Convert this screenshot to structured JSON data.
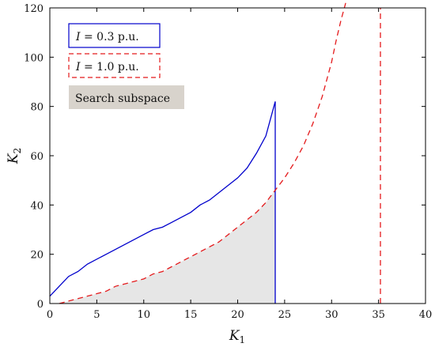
{
  "chart_data": {
    "type": "line",
    "title": "",
    "xlabel": "K",
    "xlabel_sub": "1",
    "ylabel": "K",
    "ylabel_sub": "2",
    "xlim": [
      0,
      40
    ],
    "ylim": [
      0,
      120
    ],
    "xticks": [
      0,
      5,
      10,
      15,
      20,
      25,
      30,
      35,
      40
    ],
    "yticks": [
      0,
      20,
      40,
      60,
      80,
      100,
      120
    ],
    "grid": false,
    "legend_position": "top-left",
    "legend": [
      {
        "label": "I = 0.3 p.u.",
        "italic_part": "I",
        "rest": " = 0.3 p.u.",
        "color": "#0000cc",
        "style": "solid"
      },
      {
        "label": "I = 1.0 p.u.",
        "italic_part": "I",
        "rest": " = 1.0 p.u.",
        "color": "#e41a1c",
        "style": "dashed"
      },
      {
        "label": "Search subspace",
        "color": "#d8d3cc",
        "style": "box"
      }
    ],
    "series": [
      {
        "name": "I = 0.3 p.u.",
        "color": "#0000cc",
        "style": "solid",
        "x": [
          0,
          1,
          2,
          3,
          4,
          6,
          8,
          10,
          11,
          12,
          13,
          15,
          16,
          17,
          18,
          19,
          20,
          21,
          22,
          23,
          24,
          24
        ],
        "y": [
          3,
          7,
          11,
          13,
          16,
          20,
          24,
          28,
          30,
          31,
          33,
          37,
          40,
          42,
          45,
          48,
          51,
          55,
          61,
          68,
          82,
          0
        ]
      },
      {
        "name": "I = 1.0 p.u.",
        "color": "#e41a1c",
        "style": "dashed",
        "x": [
          1,
          2,
          3,
          4,
          5,
          6,
          7,
          8,
          9,
          10,
          11,
          12,
          13,
          14,
          15,
          16,
          17,
          18,
          19,
          20,
          21,
          22,
          23,
          24,
          25,
          26,
          27,
          28,
          29,
          30,
          30.5,
          31,
          31.5
        ],
        "y": [
          0,
          1,
          2,
          3,
          4,
          5,
          7,
          8,
          9,
          10,
          12,
          13,
          15,
          17,
          19,
          21,
          23,
          25,
          28,
          31,
          34,
          37,
          41,
          46,
          51,
          57,
          64,
          73,
          84,
          98,
          107,
          115,
          122
        ]
      },
      {
        "name": "I = 1.0 p.u. vertical",
        "color": "#e41a1c",
        "style": "dashed",
        "x": [
          35.2,
          35.2
        ],
        "y": [
          0,
          120
        ]
      }
    ],
    "shaded_region": {
      "color": "#e6e6e6",
      "x": [
        1,
        2,
        3,
        4,
        5,
        6,
        7,
        8,
        9,
        10,
        11,
        12,
        13,
        14,
        15,
        16,
        17,
        18,
        19,
        20,
        21,
        22,
        23,
        24
      ],
      "y": [
        0,
        1,
        2,
        3,
        4,
        5,
        7,
        8,
        9,
        10,
        12,
        13,
        15,
        17,
        19,
        21,
        23,
        25,
        28,
        31,
        34,
        37,
        41,
        46
      ]
    }
  }
}
